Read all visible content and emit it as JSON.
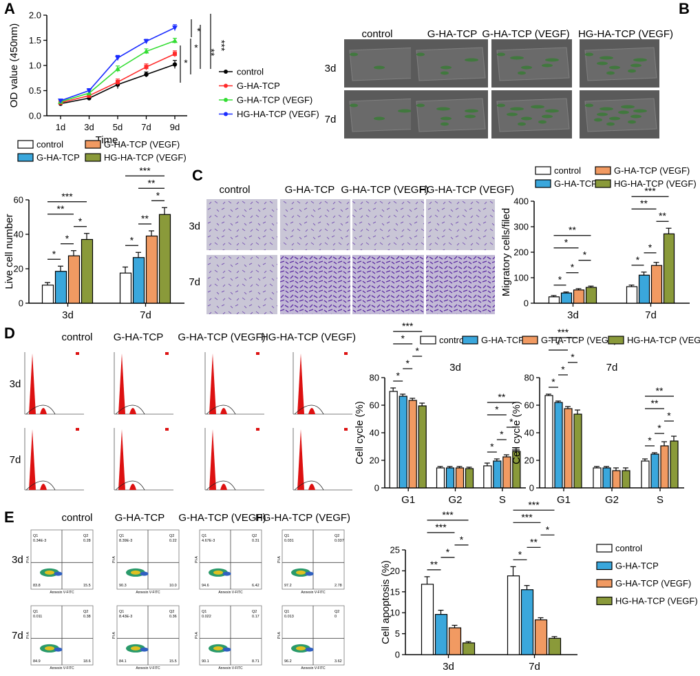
{
  "panels": {
    "A": "A",
    "B": "B",
    "C": "C",
    "D": "D",
    "E": "E"
  },
  "groups": [
    "control",
    "G-HA-TCP",
    "G-HA-TCP (VEGF)",
    "HG-HA-TCP (VEGF)"
  ],
  "timepoints": [
    "3d",
    "7d"
  ],
  "colors": {
    "control": "#ffffff",
    "g_ha_tcp": "#3aa7dc",
    "g_ha_tcp_vegf": "#f19a62",
    "hg_ha_tcp_vegf": "#8a9a3a",
    "line_control": "#000000",
    "line_g_ha_tcp": "#ff2a2a",
    "line_g_ha_tcp_vegf": "#33dd33",
    "line_hg_ha_tcp_vegf": "#1a2cff",
    "microscopy_bg": "#5a5a5a",
    "transwell_bg": "#c9c6d6",
    "transwell_cells": "#6a3fa8",
    "histogram_fill": "#dd1111"
  },
  "images": {
    "B_row_labels": [
      "3d",
      "7d"
    ],
    "C_row_labels": [
      "3d",
      "7d"
    ],
    "D_row_labels": [
      "3d",
      "7d"
    ],
    "E_row_labels": [
      "3d",
      "7d"
    ],
    "flow_axis_x": "Annexin V-FITC",
    "flow_axis_y": "PI-A",
    "flow_quadrants": [
      {
        "q1": "0.34E-3",
        "q2": "0.28",
        "q3": "15.5",
        "q4": "83.8"
      },
      {
        "q1": "8.39E-3",
        "q2": "0.22",
        "q3": "10.0",
        "q4": "90.3"
      },
      {
        "q1": "4.67E-3",
        "q2": "0.31",
        "q3": "6.42",
        "q4": "94.6"
      },
      {
        "q1": "0.031",
        "q2": "0.037",
        "q3": "2.78",
        "q4": "97.2"
      },
      {
        "q1": "0.011",
        "q2": "0.38",
        "q3": "18.6",
        "q4": "84.9"
      },
      {
        "q1": "8.43E-3",
        "q2": "0.36",
        "q3": "15.5",
        "q4": "84.1"
      },
      {
        "q1": "0.022",
        "q2": "0.17",
        "q3": "8.71",
        "q4": "90.1"
      },
      {
        "q1": "0.013",
        "q2": "0",
        "q3": "3.62",
        "q4": "96.2"
      }
    ]
  },
  "chart_data": [
    {
      "id": "A",
      "type": "line",
      "title": "",
      "xlabel": "Time",
      "ylabel": "OD value (450nm)",
      "categories": [
        "1d",
        "3d",
        "5d",
        "7d",
        "9d"
      ],
      "ylim": [
        0,
        2.0
      ],
      "yticks": [
        "0.0",
        "0.5",
        "1.0",
        "1.5",
        "2.0"
      ],
      "series": [
        {
          "name": "control",
          "values": [
            0.24,
            0.35,
            0.62,
            0.82,
            1.02
          ],
          "errors": [
            0.03,
            0.04,
            0.08,
            0.05,
            0.08
          ]
        },
        {
          "name": "G-HA-TCP",
          "values": [
            0.26,
            0.4,
            0.67,
            0.97,
            1.23
          ],
          "errors": [
            0.03,
            0.04,
            0.06,
            0.06,
            0.06
          ]
        },
        {
          "name": "G-HA-TCP (VEGF)",
          "values": [
            0.28,
            0.45,
            0.93,
            1.28,
            1.49
          ],
          "errors": [
            0.03,
            0.04,
            0.06,
            0.05,
            0.05
          ]
        },
        {
          "name": "HG-HA-TCP (VEGF)",
          "values": [
            0.3,
            0.5,
            1.15,
            1.48,
            1.75
          ],
          "errors": [
            0.03,
            0.04,
            0.05,
            0.04,
            0.06
          ]
        }
      ],
      "significance": [
        "*",
        "*",
        "**",
        "*",
        "***"
      ]
    },
    {
      "id": "B",
      "type": "bar",
      "xlabel": "",
      "ylabel": "Live cell number",
      "categories": [
        "3d",
        "7d"
      ],
      "ylim": [
        0,
        60
      ],
      "yticks": [
        "0",
        "20",
        "40",
        "60"
      ],
      "series": [
        {
          "name": "control",
          "values": [
            10.5,
            17.5
          ],
          "errors": [
            1.5,
            3.5
          ]
        },
        {
          "name": "G-HA-TCP",
          "values": [
            18.5,
            26.5
          ],
          "errors": [
            3.0,
            3.0
          ]
        },
        {
          "name": "G-HA-TCP (VEGF)",
          "values": [
            27.5,
            39.0
          ],
          "errors": [
            3.0,
            3.0
          ]
        },
        {
          "name": "HG-HA-TCP (VEGF)",
          "values": [
            37.0,
            51.5
          ],
          "errors": [
            3.5,
            4.0
          ]
        }
      ],
      "significance": [
        {
          "group": 0,
          "from": 0,
          "to": 1,
          "label": "*"
        },
        {
          "group": 0,
          "from": 1,
          "to": 2,
          "label": "*"
        },
        {
          "group": 0,
          "from": 2,
          "to": 3,
          "label": "*"
        },
        {
          "group": 0,
          "from": 0,
          "to": 2,
          "label": "**"
        },
        {
          "group": 0,
          "from": 0,
          "to": 3,
          "label": "***"
        },
        {
          "group": 1,
          "from": 0,
          "to": 1,
          "label": "*"
        },
        {
          "group": 1,
          "from": 1,
          "to": 2,
          "label": "**"
        },
        {
          "group": 1,
          "from": 2,
          "to": 3,
          "label": "*"
        },
        {
          "group": 1,
          "from": 1,
          "to": 3,
          "label": "**"
        },
        {
          "group": 1,
          "from": 0,
          "to": 3,
          "label": "***"
        }
      ]
    },
    {
      "id": "C",
      "type": "bar",
      "xlabel": "",
      "ylabel": "Migratory cells/filed",
      "categories": [
        "3d",
        "7d"
      ],
      "ylim": [
        0,
        400
      ],
      "yticks": [
        "0",
        "100",
        "200",
        "300",
        "400"
      ],
      "series": [
        {
          "name": "control",
          "values": [
            25,
            65
          ],
          "errors": [
            5,
            6
          ]
        },
        {
          "name": "G-HA-TCP",
          "values": [
            40,
            110
          ],
          "errors": [
            4,
            12
          ]
        },
        {
          "name": "G-HA-TCP (VEGF)",
          "values": [
            52,
            148
          ],
          "errors": [
            5,
            12
          ]
        },
        {
          "name": "HG-HA-TCP (VEGF)",
          "values": [
            62,
            272
          ],
          "errors": [
            5,
            22
          ]
        }
      ],
      "significance": [
        {
          "group": 0,
          "from": 0,
          "to": 1,
          "label": "*"
        },
        {
          "group": 0,
          "from": 1,
          "to": 2,
          "label": "*"
        },
        {
          "group": 0,
          "from": 2,
          "to": 3,
          "label": "*"
        },
        {
          "group": 0,
          "from": 0,
          "to": 2,
          "label": "*"
        },
        {
          "group": 0,
          "from": 0,
          "to": 3,
          "label": "**"
        },
        {
          "group": 1,
          "from": 0,
          "to": 1,
          "label": "*"
        },
        {
          "group": 1,
          "from": 1,
          "to": 2,
          "label": "*"
        },
        {
          "group": 1,
          "from": 2,
          "to": 3,
          "label": "**"
        },
        {
          "group": 1,
          "from": 0,
          "to": 2,
          "label": "**"
        },
        {
          "group": 1,
          "from": 0,
          "to": 3,
          "label": "***"
        }
      ]
    },
    {
      "id": "D1",
      "type": "bar",
      "title": "3d",
      "xlabel": "",
      "ylabel": "Cell cycle (%)",
      "categories": [
        "G1",
        "G2",
        "S"
      ],
      "ylim": [
        0,
        80
      ],
      "yticks": [
        "0",
        "20",
        "40",
        "60",
        "80"
      ],
      "series": [
        {
          "name": "control",
          "values": [
            70,
            14.5,
            16
          ],
          "errors": [
            2.5,
            1.0,
            2.0
          ]
        },
        {
          "name": "G-HA-TCP",
          "values": [
            66.5,
            14.5,
            19.5
          ],
          "errors": [
            1.5,
            1.0,
            1.5
          ]
        },
        {
          "name": "G-HA-TCP (VEGF)",
          "values": [
            63.5,
            14.5,
            22.5
          ],
          "errors": [
            1.5,
            1.0,
            1.5
          ]
        },
        {
          "name": "HG-HA-TCP (VEGF)",
          "values": [
            59.5,
            14,
            26.5
          ],
          "errors": [
            2.0,
            1.0,
            2.5
          ]
        }
      ],
      "significance": [
        {
          "group": 0,
          "from": 0,
          "to": 1,
          "label": "*"
        },
        {
          "group": 0,
          "from": 1,
          "to": 2,
          "label": "*"
        },
        {
          "group": 0,
          "from": 2,
          "to": 3,
          "label": "*"
        },
        {
          "group": 0,
          "from": 0,
          "to": 2,
          "label": "*"
        },
        {
          "group": 0,
          "from": 0,
          "to": 3,
          "label": "***"
        },
        {
          "group": 2,
          "from": 0,
          "to": 1,
          "label": "*"
        },
        {
          "group": 2,
          "from": 1,
          "to": 2,
          "label": "*"
        },
        {
          "group": 2,
          "from": 2,
          "to": 3,
          "label": "*"
        },
        {
          "group": 2,
          "from": 0,
          "to": 2,
          "label": "*"
        },
        {
          "group": 2,
          "from": 0,
          "to": 3,
          "label": "**"
        }
      ]
    },
    {
      "id": "D2",
      "type": "bar",
      "title": "7d",
      "xlabel": "",
      "ylabel": "Cell cycle (%)",
      "categories": [
        "G1",
        "G2",
        "S"
      ],
      "ylim": [
        0,
        80
      ],
      "yticks": [
        "0",
        "20",
        "40",
        "60",
        "80"
      ],
      "series": [
        {
          "name": "control",
          "values": [
            67,
            14.5,
            19.5
          ],
          "errors": [
            1.0,
            1.0,
            1.5
          ]
        },
        {
          "name": "G-HA-TCP",
          "values": [
            62,
            14.5,
            24.5
          ],
          "errors": [
            1.0,
            1.0,
            1.0
          ]
        },
        {
          "name": "G-HA-TCP (VEGF)",
          "values": [
            57.5,
            12.5,
            30.5
          ],
          "errors": [
            1.5,
            2.0,
            3.0
          ]
        },
        {
          "name": "HG-HA-TCP (VEGF)",
          "values": [
            53.5,
            12.5,
            34
          ],
          "errors": [
            3.0,
            2.0,
            3.5
          ]
        }
      ],
      "significance": [
        {
          "group": 0,
          "from": 0,
          "to": 1,
          "label": "*"
        },
        {
          "group": 0,
          "from": 1,
          "to": 2,
          "label": "*"
        },
        {
          "group": 0,
          "from": 2,
          "to": 3,
          "label": "*"
        },
        {
          "group": 0,
          "from": 0,
          "to": 2,
          "label": "*"
        },
        {
          "group": 0,
          "from": 0,
          "to": 3,
          "label": "***"
        },
        {
          "group": 2,
          "from": 0,
          "to": 1,
          "label": "*"
        },
        {
          "group": 2,
          "from": 1,
          "to": 2,
          "label": "*"
        },
        {
          "group": 2,
          "from": 2,
          "to": 3,
          "label": "*"
        },
        {
          "group": 2,
          "from": 0,
          "to": 2,
          "label": "**"
        },
        {
          "group": 2,
          "from": 0,
          "to": 3,
          "label": "**"
        }
      ]
    },
    {
      "id": "E",
      "type": "bar",
      "xlabel": "",
      "ylabel": "Cell apoptosis (%)",
      "categories": [
        "3d",
        "7d"
      ],
      "ylim": [
        0,
        25
      ],
      "yticks": [
        "0",
        "5",
        "10",
        "15",
        "20",
        "25"
      ],
      "series": [
        {
          "name": "control",
          "values": [
            16.8,
            18.8
          ],
          "errors": [
            1.8,
            2.2
          ]
        },
        {
          "name": "G-HA-TCP",
          "values": [
            9.6,
            15.5
          ],
          "errors": [
            1.0,
            1.0
          ]
        },
        {
          "name": "G-HA-TCP (VEGF)",
          "values": [
            6.4,
            8.3
          ],
          "errors": [
            0.6,
            0.5
          ]
        },
        {
          "name": "HG-HA-TCP (VEGF)",
          "values": [
            2.8,
            3.9
          ],
          "errors": [
            0.3,
            0.4
          ]
        }
      ],
      "significance": [
        {
          "group": 0,
          "from": 0,
          "to": 1,
          "label": "**"
        },
        {
          "group": 0,
          "from": 1,
          "to": 2,
          "label": "*"
        },
        {
          "group": 0,
          "from": 2,
          "to": 3,
          "label": "*"
        },
        {
          "group": 0,
          "from": 0,
          "to": 2,
          "label": "***"
        },
        {
          "group": 0,
          "from": 0,
          "to": 3,
          "label": "***"
        },
        {
          "group": 1,
          "from": 0,
          "to": 1,
          "label": "*"
        },
        {
          "group": 1,
          "from": 1,
          "to": 2,
          "label": "**"
        },
        {
          "group": 1,
          "from": 2,
          "to": 3,
          "label": "*"
        },
        {
          "group": 1,
          "from": 0,
          "to": 2,
          "label": "***"
        },
        {
          "group": 1,
          "from": 0,
          "to": 3,
          "label": "***"
        }
      ]
    }
  ]
}
